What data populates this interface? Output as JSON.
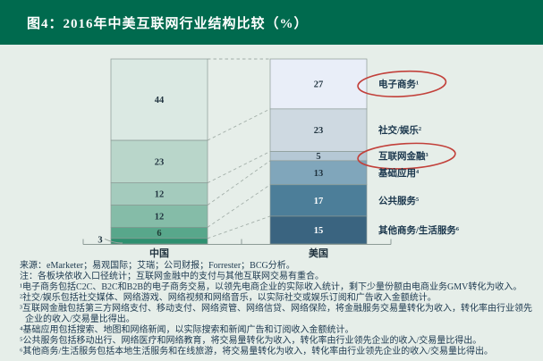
{
  "header": {
    "title": "图4：2016年中美互联网行业结构比较（%）"
  },
  "colors": {
    "title_bar_bg": "#006A4E",
    "title_text": "#FFFFFF",
    "page_bg": "#E6EEE9",
    "bar_border": "#8A9994",
    "dashed_connector": "#A3AFA9",
    "axis": "#8C9B96",
    "value_text_dark": "#20333F",
    "value_text_light": "#FFFFFF",
    "industry_label_text": "#1B374D",
    "red_circle": "#C2403A",
    "note_text": "#1C384E"
  },
  "chart_data": {
    "type": "bar",
    "variant": "100%-stacked-comparison",
    "title": "图4：2016年中美互联网行业结构比较（%）",
    "unit": "%",
    "ylim": [
      0,
      100
    ],
    "grid": false,
    "legend_position": "right-of-bars-as-segment-labels",
    "categories": [
      "中国",
      "美国"
    ],
    "segment_labels": [
      "电子商务¹",
      "社交/娱乐²",
      "互联网金融³",
      "基础应用⁴",
      "公共服务⁵",
      "其他商务/生活服务⁶"
    ],
    "circled_segment_label_indices": [
      0,
      2
    ],
    "series": [
      {
        "name": "中国",
        "values": [
          44,
          23,
          12,
          12,
          6,
          3
        ],
        "colors": [
          "#DBE9E3",
          "#B9D6CA",
          "#A4CBBD",
          "#85BCA8",
          "#58A78B",
          "#2E9070"
        ],
        "value_text_colors": [
          "#20333F",
          "#20333F",
          "#20333F",
          "#20333F",
          "#1E3A33",
          "#20333F"
        ],
        "outside_value_indices": [
          5
        ]
      },
      {
        "name": "美国",
        "values": [
          27,
          23,
          5,
          13,
          17,
          15
        ],
        "colors": [
          "#E9EEF8",
          "#CED9E1",
          "#B5C8D5",
          "#80A6BB",
          "#4C7E99",
          "#3A6480"
        ],
        "value_text_colors": [
          "#20333F",
          "#20333F",
          "#20333F",
          "#20333F",
          "#FFFFFF",
          "#FFFFFF"
        ],
        "outside_value_indices": []
      }
    ]
  },
  "notes": {
    "lines": [
      "来源：eMarketer；易观国际；艾瑞；公司财报；Forrester；BCG分析。",
      "注：各板块依收入口径统计；互联网金融中的支付与其他互联网交易有重合。",
      "¹电子商务包括C2C、B2C和B2B的电子商务交易，以领先电商企业的实际收入统计，剩下少量份额由电商业务GMV转化为收入。",
      "²社交/娱乐包括社交媒体、网络游戏、网络视频和网络音乐，以实际社交或娱乐订阅和广告收入金额统计。",
      "³互联网金融包括第三方网络支付、移动支付、网络资管、网络信贷、网络保险，将金融服务交易量转化为收入，转化率由行业领先企业的收入/交易量比得出。",
      "⁴基础应用包括搜索、地图和网络新闻，以实际搜索和新闻广告和订阅收入金额统计。",
      "⁵公共服务包括移动出行、网络医疗和网络教育，将交易量转化为收入，转化率由行业领先企业的收入/交易量比得出。",
      "⁶其他商务/生活服务包括本地生活服务和在线旅游，将交易量转化为收入，转化率由行业领先企业的收入/交易量比得出。"
    ]
  }
}
